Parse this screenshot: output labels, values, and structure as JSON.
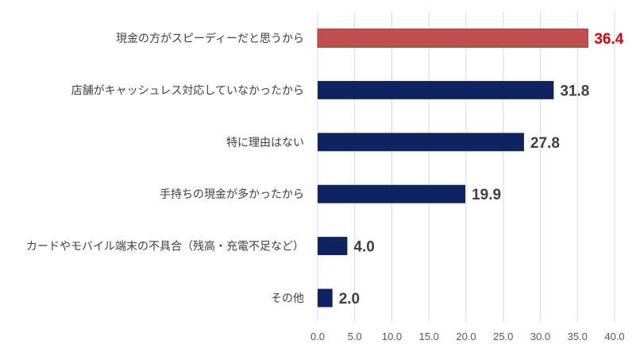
{
  "chart_data": {
    "type": "bar",
    "orientation": "horizontal",
    "categories": [
      "現金の方がスピーディーだと思うから",
      "店舗がキャッシュレス対応していなかったから",
      "特に理由はない",
      "手持ちの現金が多かったから",
      "カードやモバイル端末の不具合（残高・充電不足など）",
      "その他"
    ],
    "values": [
      36.4,
      31.8,
      27.8,
      19.9,
      4.0,
      2.0
    ],
    "value_labels": [
      "36.4",
      "31.8",
      "27.8",
      "19.9",
      "4.0",
      "2.0"
    ],
    "highlight_index": 0,
    "xlim": [
      0,
      40
    ],
    "x_ticks": [
      "0.0",
      "5.0",
      "10.0",
      "15.0",
      "20.0",
      "25.0",
      "30.0",
      "35.0",
      "40.0"
    ],
    "grid": "vertical",
    "legend": "none",
    "title": "",
    "xlabel": "",
    "ylabel": "",
    "colors": {
      "bar": "#0f2360",
      "highlight_bar": "#c0504d",
      "highlight_bar_edge": "#a03b38",
      "label": "#404040",
      "highlight_label": "#e00000",
      "grid": "#d9d9d9"
    }
  }
}
